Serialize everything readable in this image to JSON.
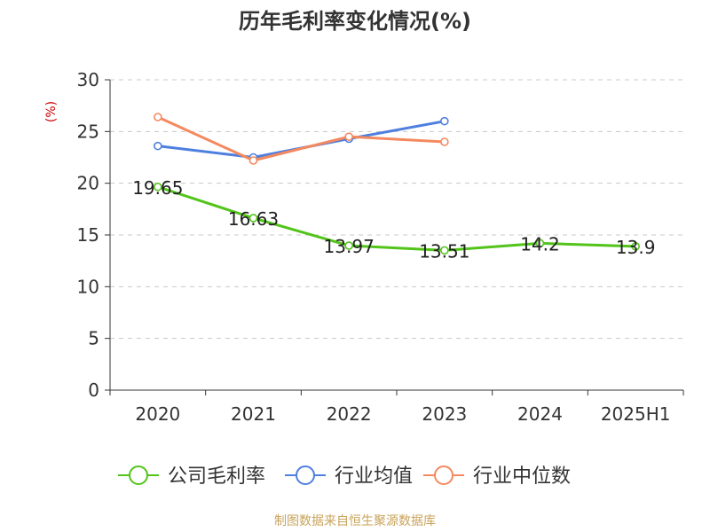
{
  "chart_data": {
    "type": "line",
    "title": "历年毛利率变化情况(%)",
    "ylabel": "(%)",
    "xlabel": "",
    "categories": [
      "2020",
      "2021",
      "2022",
      "2023",
      "2024",
      "2025H1"
    ],
    "ylim": [
      0,
      30
    ],
    "yticks": [
      0,
      5,
      10,
      15,
      20,
      25,
      30
    ],
    "grid": true,
    "legend_position": "bottom",
    "series": [
      {
        "name": "公司毛利率",
        "color": "#52c41a",
        "values": [
          19.65,
          16.63,
          13.97,
          13.51,
          14.2,
          13.9
        ],
        "labels": [
          "19.65",
          "16.63",
          "13.97",
          "13.51",
          "14.2",
          "13.9"
        ]
      },
      {
        "name": "行业均值",
        "color": "#4e7fdf",
        "values": [
          23.6,
          22.5,
          24.3,
          26.0,
          null,
          null
        ]
      },
      {
        "name": "行业中位数",
        "color": "#f4895f",
        "values": [
          26.4,
          22.2,
          24.5,
          24.0,
          null,
          null
        ]
      }
    ]
  },
  "footer": {
    "source": "制图数据来自恒生聚源数据库",
    "source_color": "#c8a35a"
  }
}
